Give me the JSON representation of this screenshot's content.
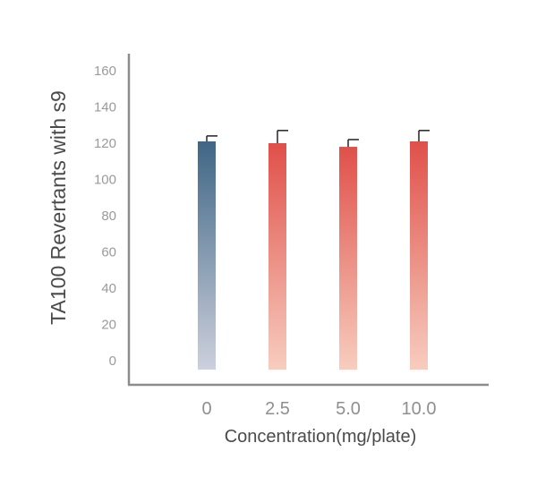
{
  "chart_data": {
    "type": "bar",
    "title": "",
    "xlabel": "Concentration(mg/plate)",
    "ylabel": "TA100 Revertants with s9",
    "categories": [
      "0",
      "2.5",
      "5.0",
      "10.0"
    ],
    "values": [
      121,
      120,
      118,
      121
    ],
    "errors": [
      3,
      7,
      4,
      6
    ],
    "ylim": [
      0,
      160
    ],
    "yticks": [
      0,
      20,
      40,
      60,
      80,
      100,
      120,
      140,
      160
    ],
    "grid": false,
    "legend": "none",
    "colors": {
      "control_top": "#3f6685",
      "control_bottom": "#cdd0dd",
      "treated_top": "#e0504a",
      "treated_bottom": "#f7cdbf",
      "axis": "#8c8c8c",
      "error_bar": "#222222"
    }
  }
}
